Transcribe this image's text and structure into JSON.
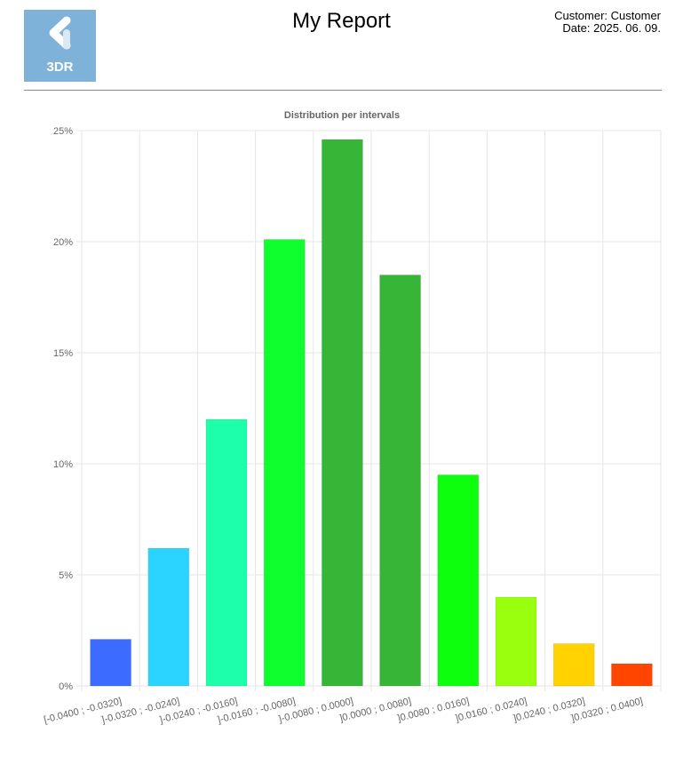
{
  "header": {
    "logo_text": "3DR",
    "title": "My Report",
    "customer_line": "Customer: Customer",
    "date_line": "Date: 2025. 06. 09."
  },
  "chart_data": {
    "type": "bar",
    "title": "Distribution per intervals",
    "xlabel": "",
    "ylabel": "",
    "ylim": [
      0,
      25
    ],
    "y_ticks": [
      0,
      5,
      10,
      15,
      20,
      25
    ],
    "y_tick_labels": [
      "0%",
      "5%",
      "10%",
      "15%",
      "20%",
      "25%"
    ],
    "grid": true,
    "categories": [
      "[-0.0400 ; -0.0320]",
      "]-0.0320 ; -0.0240]",
      "]-0.0240 ; -0.0160]",
      "]-0.0160 ; -0.0080]",
      "]-0.0080 ; 0.0000]",
      "]0.0000 ; 0.0080]",
      "]0.0080 ; 0.0160]",
      "]0.0160 ; 0.0240]",
      "]0.0240 ; 0.0320]",
      "]0.0320 ; 0.0400]"
    ],
    "values": [
      2.1,
      6.2,
      12.0,
      20.1,
      24.6,
      18.5,
      9.5,
      4.0,
      1.9,
      1.0
    ],
    "colors": [
      "#3b6cff",
      "#2ad4ff",
      "#1effa9",
      "#0eff2e",
      "#37b537",
      "#37b537",
      "#0eff0e",
      "#98ff0e",
      "#ffd200",
      "#ff4500"
    ]
  },
  "colors": {
    "logo_bg": "#7fb2d9",
    "grid": "#e6e6e6",
    "tick_text": "#666666",
    "title_text": "#666666"
  }
}
